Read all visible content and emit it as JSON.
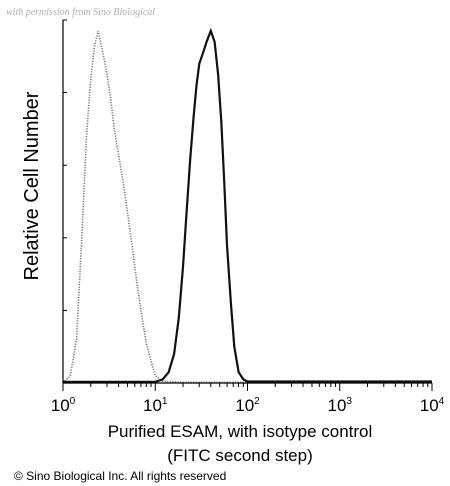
{
  "watermark": "with permission from Sino Biological",
  "copyright": "© Sino Biological Inc. All rights reserved",
  "chart_data": {
    "type": "line",
    "xscale": "log",
    "xlim": [
      1,
      10000
    ],
    "ylim": [
      0,
      100
    ],
    "ylabel": "Relative Cell Number",
    "xlabel_lines": [
      "Purified ESAM, with isotype control",
      "(FITC second step)"
    ],
    "x_ticks": [
      {
        "base": "10",
        "exp": "0",
        "value": 1
      },
      {
        "base": "10",
        "exp": "1",
        "value": 10
      },
      {
        "base": "10",
        "exp": "2",
        "value": 100
      },
      {
        "base": "10",
        "exp": "3",
        "value": 1000
      },
      {
        "base": "10",
        "exp": "4",
        "value": 10000
      }
    ],
    "grid": false,
    "legend": "none",
    "series": [
      {
        "role": "isotype-control",
        "style": "dotted-gray",
        "color": "#777777",
        "points": [
          [
            1.0,
            0
          ],
          [
            1.2,
            2
          ],
          [
            1.4,
            12
          ],
          [
            1.6,
            40
          ],
          [
            1.8,
            68
          ],
          [
            2.0,
            84
          ],
          [
            2.2,
            93
          ],
          [
            2.4,
            97
          ],
          [
            2.6,
            93
          ],
          [
            2.8,
            89
          ],
          [
            3.0,
            85
          ],
          [
            3.3,
            78
          ],
          [
            3.6,
            70
          ],
          [
            4.0,
            63
          ],
          [
            4.5,
            55
          ],
          [
            5.0,
            47
          ],
          [
            5.6,
            38
          ],
          [
            6.3,
            28
          ],
          [
            7.1,
            19
          ],
          [
            8.0,
            11
          ],
          [
            9.0,
            6
          ],
          [
            10,
            2
          ],
          [
            12,
            0.5
          ],
          [
            20,
            0.2
          ],
          [
            100,
            0.2
          ],
          [
            10000,
            0.2
          ]
        ]
      },
      {
        "role": "purified-esam",
        "style": "solid-black",
        "color": "#111111",
        "points": [
          [
            1.0,
            0.3
          ],
          [
            10,
            0.3
          ],
          [
            12,
            1
          ],
          [
            14,
            3
          ],
          [
            16,
            8
          ],
          [
            18,
            18
          ],
          [
            20,
            32
          ],
          [
            22,
            48
          ],
          [
            24,
            62
          ],
          [
            26,
            73
          ],
          [
            28,
            82
          ],
          [
            30,
            88
          ],
          [
            33,
            91
          ],
          [
            36,
            94
          ],
          [
            40,
            97
          ],
          [
            44,
            94
          ],
          [
            48,
            85
          ],
          [
            52,
            72
          ],
          [
            56,
            55
          ],
          [
            60,
            38
          ],
          [
            66,
            22
          ],
          [
            72,
            10
          ],
          [
            80,
            3
          ],
          [
            90,
            1
          ],
          [
            100,
            0.4
          ],
          [
            10000,
            0.4
          ]
        ]
      }
    ]
  }
}
